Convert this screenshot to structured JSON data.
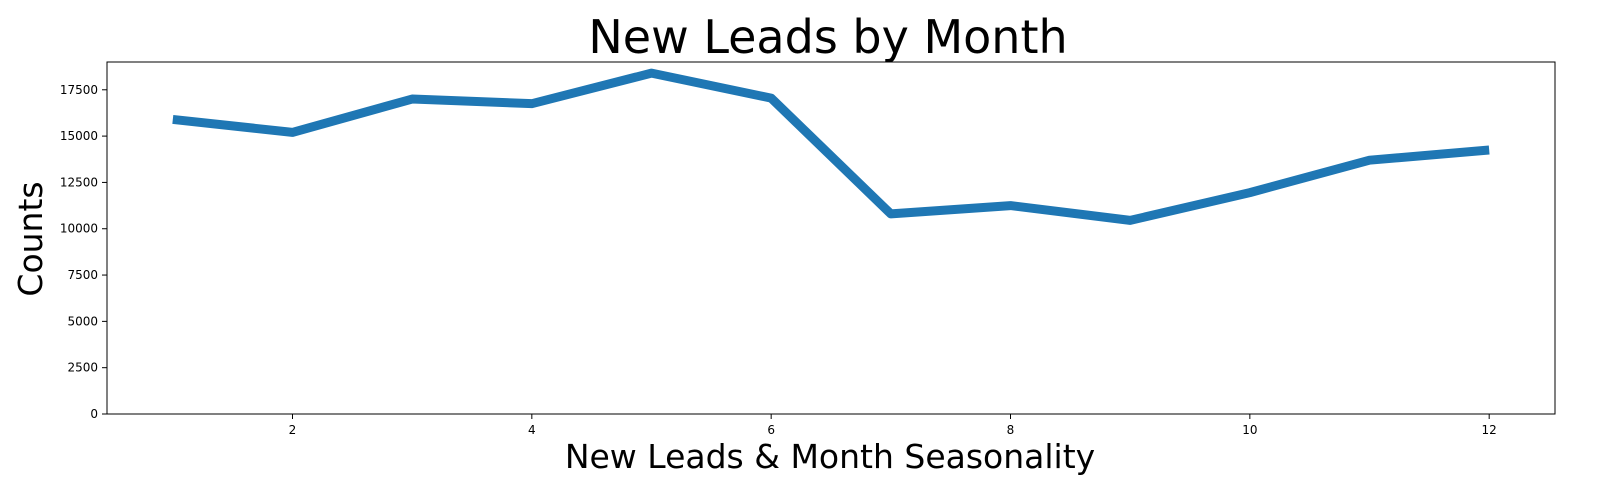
{
  "chart_data": {
    "type": "line",
    "title": "New Leads by Month",
    "xlabel": "New Leads & Month Seasonality",
    "ylabel": "Counts",
    "x": [
      1,
      2,
      3,
      4,
      5,
      6,
      7,
      8,
      9,
      10,
      11,
      12
    ],
    "series": [
      {
        "values": [
          15900,
          15200,
          17000,
          16750,
          18400,
          17050,
          10800,
          11250,
          10450,
          11950,
          13700,
          14250
        ]
      }
    ],
    "xlim": [
      0.45,
      12.55
    ],
    "ylim": [
      0,
      19000
    ],
    "xticks": [
      2,
      4,
      6,
      8,
      10,
      12
    ],
    "yticks": [
      0,
      2500,
      5000,
      7500,
      10000,
      12500,
      15000,
      17500
    ],
    "grid": false,
    "legend": "none",
    "line_color": "#1f77b4"
  }
}
